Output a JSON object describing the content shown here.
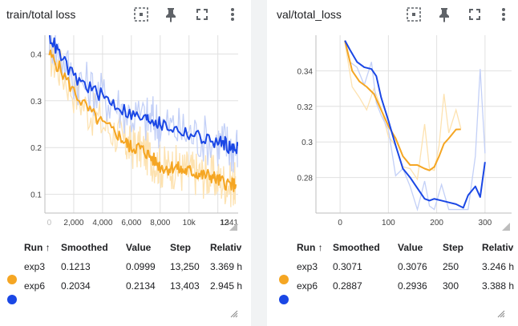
{
  "colors": {
    "exp3": "#f5a623",
    "exp6": "#1a47e5",
    "exp3_raw": "#fde2b0",
    "exp6_raw": "#c3d0f7",
    "grid": "#e0e0e0",
    "icon": "#5f6368"
  },
  "icons": [
    "fit-domain-icon",
    "pin-icon",
    "fullscreen-icon",
    "more-vert-icon",
    "resize-handle-icon"
  ],
  "table_headers": {
    "run": "Run ↑",
    "smoothed": "Smoothed",
    "value": "Value",
    "step": "Step",
    "relative": "Relative"
  },
  "train": {
    "title": "train/total loss",
    "rows": [
      {
        "run": "exp3",
        "smoothed": "0.1213",
        "value": "0.0999",
        "step": "13,250",
        "relative": "3.369 h"
      },
      {
        "run": "exp6",
        "smoothed": "0.2034",
        "value": "0.2134",
        "step": "13,403",
        "relative": "2.945 h"
      }
    ]
  },
  "val": {
    "title": "val/total_loss",
    "rows": [
      {
        "run": "exp3",
        "smoothed": "0.3071",
        "value": "0.3076",
        "step": "250",
        "relative": "3.246 h"
      },
      {
        "run": "exp6",
        "smoothed": "0.2887",
        "value": "0.2936",
        "step": "300",
        "relative": "3.388 h"
      }
    ]
  },
  "chart_data": [
    {
      "type": "line",
      "chart": "train",
      "x_tick_labels": [
        "0",
        "2,000",
        "4,000",
        "6,000",
        "8,000",
        "10k",
        "12",
        "1341"
      ],
      "y_tick_labels": [
        "0.1",
        "0.2",
        "0.3",
        "0.4"
      ],
      "xlim": [
        0,
        13410
      ],
      "ylim": [
        0.06,
        0.44
      ],
      "grid": true,
      "series": [
        {
          "name": "exp3",
          "smoothed": [
            [
              300,
              0.4
            ],
            [
              1000,
              0.37
            ],
            [
              2000,
              0.32
            ],
            [
              3000,
              0.28
            ],
            [
              4000,
              0.25
            ],
            [
              5000,
              0.23
            ],
            [
              5600,
              0.21
            ],
            [
              6000,
              0.2
            ],
            [
              6500,
              0.2
            ],
            [
              7000,
              0.19
            ],
            [
              7500,
              0.175
            ],
            [
              8000,
              0.16
            ],
            [
              8500,
              0.155
            ],
            [
              9000,
              0.16
            ],
            [
              9500,
              0.15
            ],
            [
              10000,
              0.15
            ],
            [
              10500,
              0.145
            ],
            [
              11000,
              0.14
            ],
            [
              11500,
              0.14
            ],
            [
              12000,
              0.13
            ],
            [
              12500,
              0.125
            ],
            [
              13000,
              0.12
            ],
            [
              13250,
              0.1213
            ]
          ]
        },
        {
          "name": "exp6",
          "smoothed": [
            [
              300,
              0.44
            ],
            [
              1000,
              0.4
            ],
            [
              2000,
              0.35
            ],
            [
              3000,
              0.33
            ],
            [
              4000,
              0.31
            ],
            [
              5000,
              0.29
            ],
            [
              6000,
              0.27
            ],
            [
              7000,
              0.26
            ],
            [
              7500,
              0.26
            ],
            [
              8000,
              0.25
            ],
            [
              9000,
              0.24
            ],
            [
              10000,
              0.23
            ],
            [
              11000,
              0.22
            ],
            [
              12000,
              0.21
            ],
            [
              12500,
              0.21
            ],
            [
              13000,
              0.195
            ],
            [
              13403,
              0.2034
            ]
          ]
        }
      ]
    },
    {
      "type": "line",
      "chart": "val",
      "x_tick_labels": [
        "0",
        "100",
        "200",
        "300"
      ],
      "y_tick_labels": [
        "0.34",
        "0.32",
        "0.3",
        "0.28"
      ],
      "xlim": [
        -50,
        355
      ],
      "ylim": [
        0.26,
        0.36
      ],
      "grid": true,
      "series": [
        {
          "name": "exp3",
          "smoothed": [
            [
              10,
              0.357
            ],
            [
              25,
              0.34
            ],
            [
              40,
              0.334
            ],
            [
              55,
              0.331
            ],
            [
              70,
              0.327
            ],
            [
              85,
              0.318
            ],
            [
              100,
              0.309
            ],
            [
              115,
              0.302
            ],
            [
              130,
              0.292
            ],
            [
              145,
              0.287
            ],
            [
              160,
              0.287
            ],
            [
              175,
              0.285
            ],
            [
              185,
              0.284
            ],
            [
              195,
              0.286
            ],
            [
              205,
              0.292
            ],
            [
              215,
              0.299
            ],
            [
              225,
              0.302
            ],
            [
              240,
              0.307
            ],
            [
              250,
              0.3071
            ]
          ],
          "raw": [
            [
              10,
              0.356
            ],
            [
              25,
              0.331
            ],
            [
              40,
              0.325
            ],
            [
              55,
              0.318
            ],
            [
              70,
              0.33
            ],
            [
              85,
              0.319
            ],
            [
              100,
              0.303
            ],
            [
              115,
              0.298
            ],
            [
              130,
              0.286
            ],
            [
              145,
              0.285
            ],
            [
              160,
              0.279
            ],
            [
              175,
              0.31
            ],
            [
              185,
              0.285
            ],
            [
              195,
              0.284
            ],
            [
              205,
              0.298
            ],
            [
              215,
              0.327
            ],
            [
              225,
              0.305
            ],
            [
              240,
              0.318
            ],
            [
              250,
              0.3076
            ]
          ]
        },
        {
          "name": "exp6",
          "smoothed": [
            [
              10,
              0.357
            ],
            [
              20,
              0.352
            ],
            [
              35,
              0.345
            ],
            [
              50,
              0.342
            ],
            [
              65,
              0.341
            ],
            [
              75,
              0.337
            ],
            [
              85,
              0.325
            ],
            [
              100,
              0.312
            ],
            [
              115,
              0.298
            ],
            [
              130,
              0.285
            ],
            [
              145,
              0.28
            ],
            [
              160,
              0.274
            ],
            [
              175,
              0.268
            ],
            [
              185,
              0.267
            ],
            [
              195,
              0.268
            ],
            [
              210,
              0.267
            ],
            [
              225,
              0.266
            ],
            [
              240,
              0.265
            ],
            [
              255,
              0.263
            ],
            [
              265,
              0.27
            ],
            [
              280,
              0.275
            ],
            [
              290,
              0.269
            ],
            [
              300,
              0.2887
            ]
          ],
          "raw": [
            [
              10,
              0.356
            ],
            [
              20,
              0.345
            ],
            [
              35,
              0.342
            ],
            [
              50,
              0.332
            ],
            [
              65,
              0.345
            ],
            [
              75,
              0.322
            ],
            [
              85,
              0.315
            ],
            [
              100,
              0.307
            ],
            [
              115,
              0.281
            ],
            [
              130,
              0.285
            ],
            [
              145,
              0.275
            ],
            [
              160,
              0.262
            ],
            [
              175,
              0.278
            ],
            [
              185,
              0.264
            ],
            [
              195,
              0.262
            ],
            [
              210,
              0.276
            ],
            [
              225,
              0.262
            ],
            [
              240,
              0.262
            ],
            [
              255,
              0.262
            ],
            [
              265,
              0.262
            ],
            [
              280,
              0.292
            ],
            [
              290,
              0.341
            ],
            [
              300,
              0.2936
            ]
          ]
        }
      ]
    }
  ]
}
